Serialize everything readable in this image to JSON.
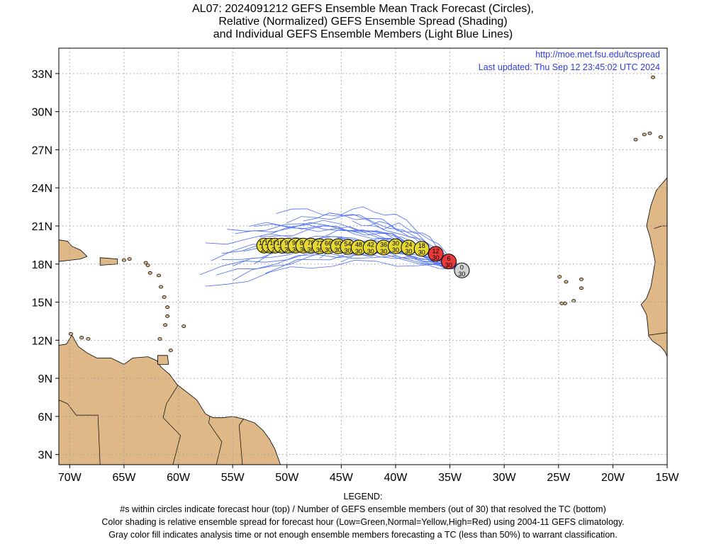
{
  "title": {
    "line1": "AL07: 2024091212 GEFS Ensemble Mean Track Forecast (Circles),",
    "line2": "Relative (Normalized) GEFS Ensemble Spread (Shading)",
    "line3": "and Individual GEFS Ensemble Members (Light Blue Lines)"
  },
  "header_info": {
    "url": "http://moe.met.fsu.edu/tcspread",
    "updated": "Last updated: Thu Sep 12 23:45:02 UTC 2024"
  },
  "map": {
    "lon_range": [
      -71,
      -15
    ],
    "lat_range": [
      2.2,
      35
    ],
    "lon_ticks": [
      -70,
      -65,
      -60,
      -55,
      -50,
      -45,
      -40,
      -35,
      -30,
      -25,
      -20,
      -15
    ],
    "lon_labels": [
      "70W",
      "65W",
      "60W",
      "55W",
      "50W",
      "45W",
      "40W",
      "35W",
      "30W",
      "25W",
      "20W",
      "15W"
    ],
    "lat_ticks": [
      3,
      6,
      9,
      12,
      15,
      18,
      21,
      24,
      27,
      30,
      33
    ],
    "lat_labels": [
      "3N",
      "6N",
      "9N",
      "12N",
      "15N",
      "18N",
      "21N",
      "24N",
      "27N",
      "30N",
      "33N"
    ],
    "grid": true,
    "land_color": "#deb887",
    "member_line_color": "#4a6cf0"
  },
  "track_points": [
    {
      "hour": "0",
      "members": "30",
      "lon": -33.9,
      "lat": 17.5,
      "spread": "gray"
    },
    {
      "hour": "6",
      "members": "30",
      "lon": -35.1,
      "lat": 18.2,
      "spread": "high"
    },
    {
      "hour": "12",
      "members": "30",
      "lon": -36.3,
      "lat": 18.8,
      "spread": "high"
    },
    {
      "hour": "18",
      "members": "30",
      "lon": -37.6,
      "lat": 19.2,
      "spread": "normal"
    },
    {
      "hour": "24",
      "members": "30",
      "lon": -38.8,
      "lat": 19.3,
      "spread": "normal"
    },
    {
      "hour": "30",
      "members": "30",
      "lon": -40.0,
      "lat": 19.4,
      "spread": "normal"
    },
    {
      "hour": "36",
      "members": "30",
      "lon": -41.1,
      "lat": 19.3,
      "spread": "normal"
    },
    {
      "hour": "42",
      "members": "30",
      "lon": -42.3,
      "lat": 19.3,
      "spread": "normal"
    },
    {
      "hour": "48",
      "members": "30",
      "lon": -43.4,
      "lat": 19.3,
      "spread": "normal"
    },
    {
      "hour": "54",
      "members": "30",
      "lon": -44.4,
      "lat": 19.35,
      "spread": "normal"
    },
    {
      "hour": "60",
      "members": "30",
      "lon": -45.3,
      "lat": 19.4,
      "spread": "normal"
    },
    {
      "hour": "66",
      "members": "30",
      "lon": -46.2,
      "lat": 19.4,
      "spread": "normal"
    },
    {
      "hour": "72",
      "members": "30",
      "lon": -47.0,
      "lat": 19.4,
      "spread": "normal"
    },
    {
      "hour": "78",
      "members": "30",
      "lon": -47.8,
      "lat": 19.45,
      "spread": "normal"
    },
    {
      "hour": "84",
      "members": "30",
      "lon": -48.5,
      "lat": 19.45,
      "spread": "normal"
    },
    {
      "hour": "90",
      "members": "30",
      "lon": -49.2,
      "lat": 19.45,
      "spread": "normal"
    },
    {
      "hour": "96",
      "members": "30",
      "lon": -49.9,
      "lat": 19.45,
      "spread": "normal"
    },
    {
      "hour": "102",
      "members": "29",
      "lon": -50.5,
      "lat": 19.45,
      "spread": "normal"
    },
    {
      "hour": "108",
      "members": "29",
      "lon": -51.1,
      "lat": 19.45,
      "spread": "normal"
    },
    {
      "hour": "114",
      "members": "29",
      "lon": -51.6,
      "lat": 19.45,
      "spread": "normal"
    },
    {
      "hour": "120",
      "members": "29",
      "lon": -52.1,
      "lat": 19.45,
      "spread": "normal"
    }
  ],
  "spread_colors": {
    "gray": "#d3d3d3",
    "high": "#e83a3a",
    "normal": "#e6d832",
    "low": "#3ec43e"
  },
  "legend": {
    "heading": "LEGEND:",
    "line1": "#s within circles indicate forecast hour (top) / Number of GEFS ensemble members (out of 30) that resolved the TC (bottom)",
    "line2": "Color shading is relative ensemble spread for forecast hour (Low=Green,Normal=Yellow,High=Red) using 2004-11 GEFS climatology.",
    "line3": "Gray color fill indicates analysis time or not enough ensemble members forecasting a TC (less than 50%) to warrant classification."
  }
}
